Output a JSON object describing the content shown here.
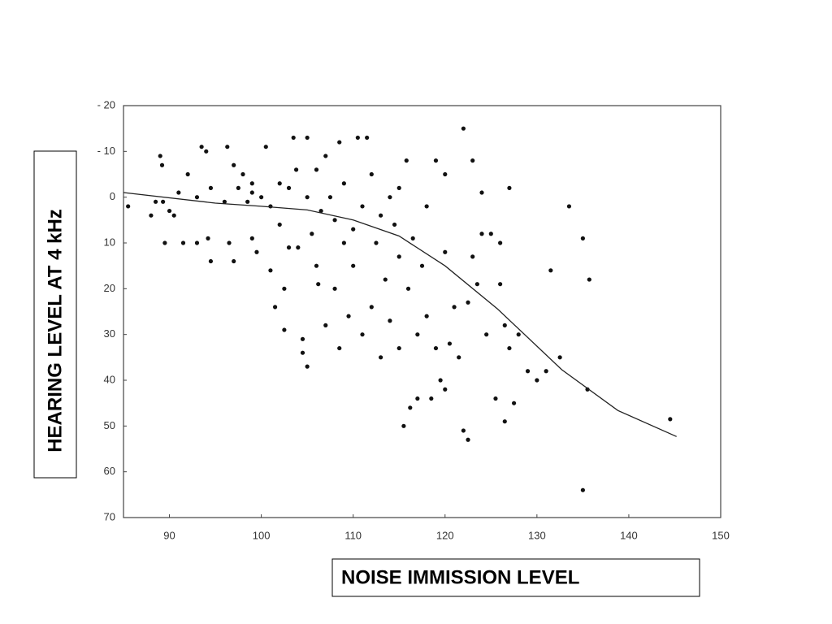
{
  "chart_data": {
    "type": "scatter",
    "x_label": "NOISE IMMISSION LEVEL",
    "y_label": "HEARING LEVEL AT 4 kHz",
    "xlim": [
      85,
      150
    ],
    "xticks": [
      90,
      100,
      110,
      120,
      130,
      140,
      150
    ],
    "ylim": [
      -20,
      70
    ],
    "y_inverted": true,
    "yticks": [
      {
        "value": -20,
        "label": "- 20"
      },
      {
        "value": -10,
        "label": "- 10"
      },
      0,
      10,
      20,
      30,
      40,
      50,
      60,
      70
    ],
    "grid": false,
    "series": [
      {
        "type": "scatter",
        "color": "#111",
        "x": [
          85.5,
          88,
          88.5,
          89,
          89.2,
          89.5,
          89.3,
          90,
          90.5,
          91,
          91.5,
          92,
          93,
          93,
          93.5,
          94,
          94.2,
          94.5,
          94.5,
          96,
          96.3,
          96.5,
          97,
          97,
          97.5,
          98,
          98.5,
          99,
          99,
          99,
          99.5,
          100,
          100.5,
          101,
          101,
          101.5,
          102,
          102,
          102.5,
          102.5,
          103,
          103,
          103.5,
          103.8,
          104,
          104.5,
          104.5,
          105,
          105,
          105,
          105.5,
          106,
          106,
          106.2,
          106.5,
          107,
          107,
          107.5,
          108,
          108,
          108.5,
          108.5,
          109,
          109,
          109.5,
          110,
          110,
          110.5,
          111,
          111,
          111.5,
          112,
          112,
          112.5,
          113,
          113,
          113.5,
          114,
          114,
          114.5,
          115,
          115,
          115,
          115.5,
          115.8,
          116,
          116.2,
          116.5,
          117,
          117,
          117.5,
          118,
          118,
          118.5,
          119,
          119,
          119.5,
          120,
          120,
          120,
          120.5,
          121,
          121.5,
          122,
          122,
          122.5,
          122.5,
          123,
          123,
          123.5,
          124,
          124,
          124.5,
          125,
          125.5,
          126,
          126,
          126.5,
          126.5,
          127,
          127,
          127.5,
          128,
          129,
          130,
          131,
          131.5,
          132.5,
          133.5,
          135,
          135,
          135.5,
          135.7,
          144.5
        ],
        "values": [
          2,
          4,
          1,
          -9,
          -7,
          10,
          1,
          3,
          4,
          -1,
          10,
          -5,
          0,
          10,
          -11,
          -10,
          9,
          14,
          -2,
          1,
          -11,
          10,
          -7,
          14,
          -2,
          -5,
          1,
          -3,
          -1,
          9,
          12,
          0,
          -11,
          2,
          16,
          24,
          -3,
          6,
          29,
          20,
          -2,
          11,
          -13,
          -6,
          11,
          34,
          31,
          -13,
          0,
          37,
          8,
          -6,
          15,
          19,
          3,
          -9,
          28,
          0,
          5,
          20,
          -12,
          33,
          10,
          -3,
          26,
          7,
          15,
          -13,
          30,
          2,
          -13,
          -5,
          24,
          10,
          35,
          4,
          18,
          0,
          27,
          6,
          -2,
          13,
          33,
          50,
          -8,
          20,
          46,
          9,
          30,
          44,
          15,
          2,
          26,
          44,
          -8,
          33,
          40,
          -5,
          12,
          42,
          32,
          24,
          35,
          -15,
          51,
          53,
          23,
          -8,
          13,
          19,
          -1,
          8,
          30,
          8,
          44,
          19,
          10,
          49,
          28,
          -2,
          33,
          45,
          30,
          38,
          40,
          38,
          16,
          35,
          2,
          9,
          64,
          42,
          18,
          48.5
        ]
      },
      {
        "type": "line",
        "color": "#222",
        "x": [
          85,
          95,
          100,
          105,
          110,
          115,
          120,
          125.7,
          132.7,
          138.8,
          145.2
        ],
        "values": [
          -1,
          1.3,
          2,
          2.8,
          5,
          8.5,
          15,
          24.4,
          37.7,
          46.6,
          52.3
        ]
      }
    ]
  }
}
